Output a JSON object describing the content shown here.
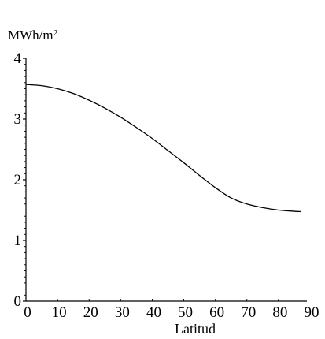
{
  "chart_data": {
    "type": "line",
    "ylabel_main": "MWh/m",
    "ylabel_superscript": "2",
    "xlabel": "Latitud",
    "xlim": [
      0,
      90
    ],
    "ylim": [
      0,
      4
    ],
    "x_ticks": [
      0,
      10,
      20,
      30,
      40,
      50,
      60,
      70,
      80,
      90
    ],
    "y_ticks": [
      0,
      1,
      2,
      3,
      4
    ],
    "grid": false,
    "series": [
      {
        "x": [
          0,
          5,
          10,
          15,
          20,
          25,
          30,
          35,
          40,
          45,
          50,
          55,
          60,
          65,
          70,
          75,
          80,
          85,
          87
        ],
        "y": [
          3.57,
          3.55,
          3.5,
          3.42,
          3.31,
          3.18,
          3.03,
          2.86,
          2.68,
          2.48,
          2.28,
          2.07,
          1.87,
          1.7,
          1.6,
          1.54,
          1.5,
          1.48,
          1.475
        ]
      }
    ]
  }
}
